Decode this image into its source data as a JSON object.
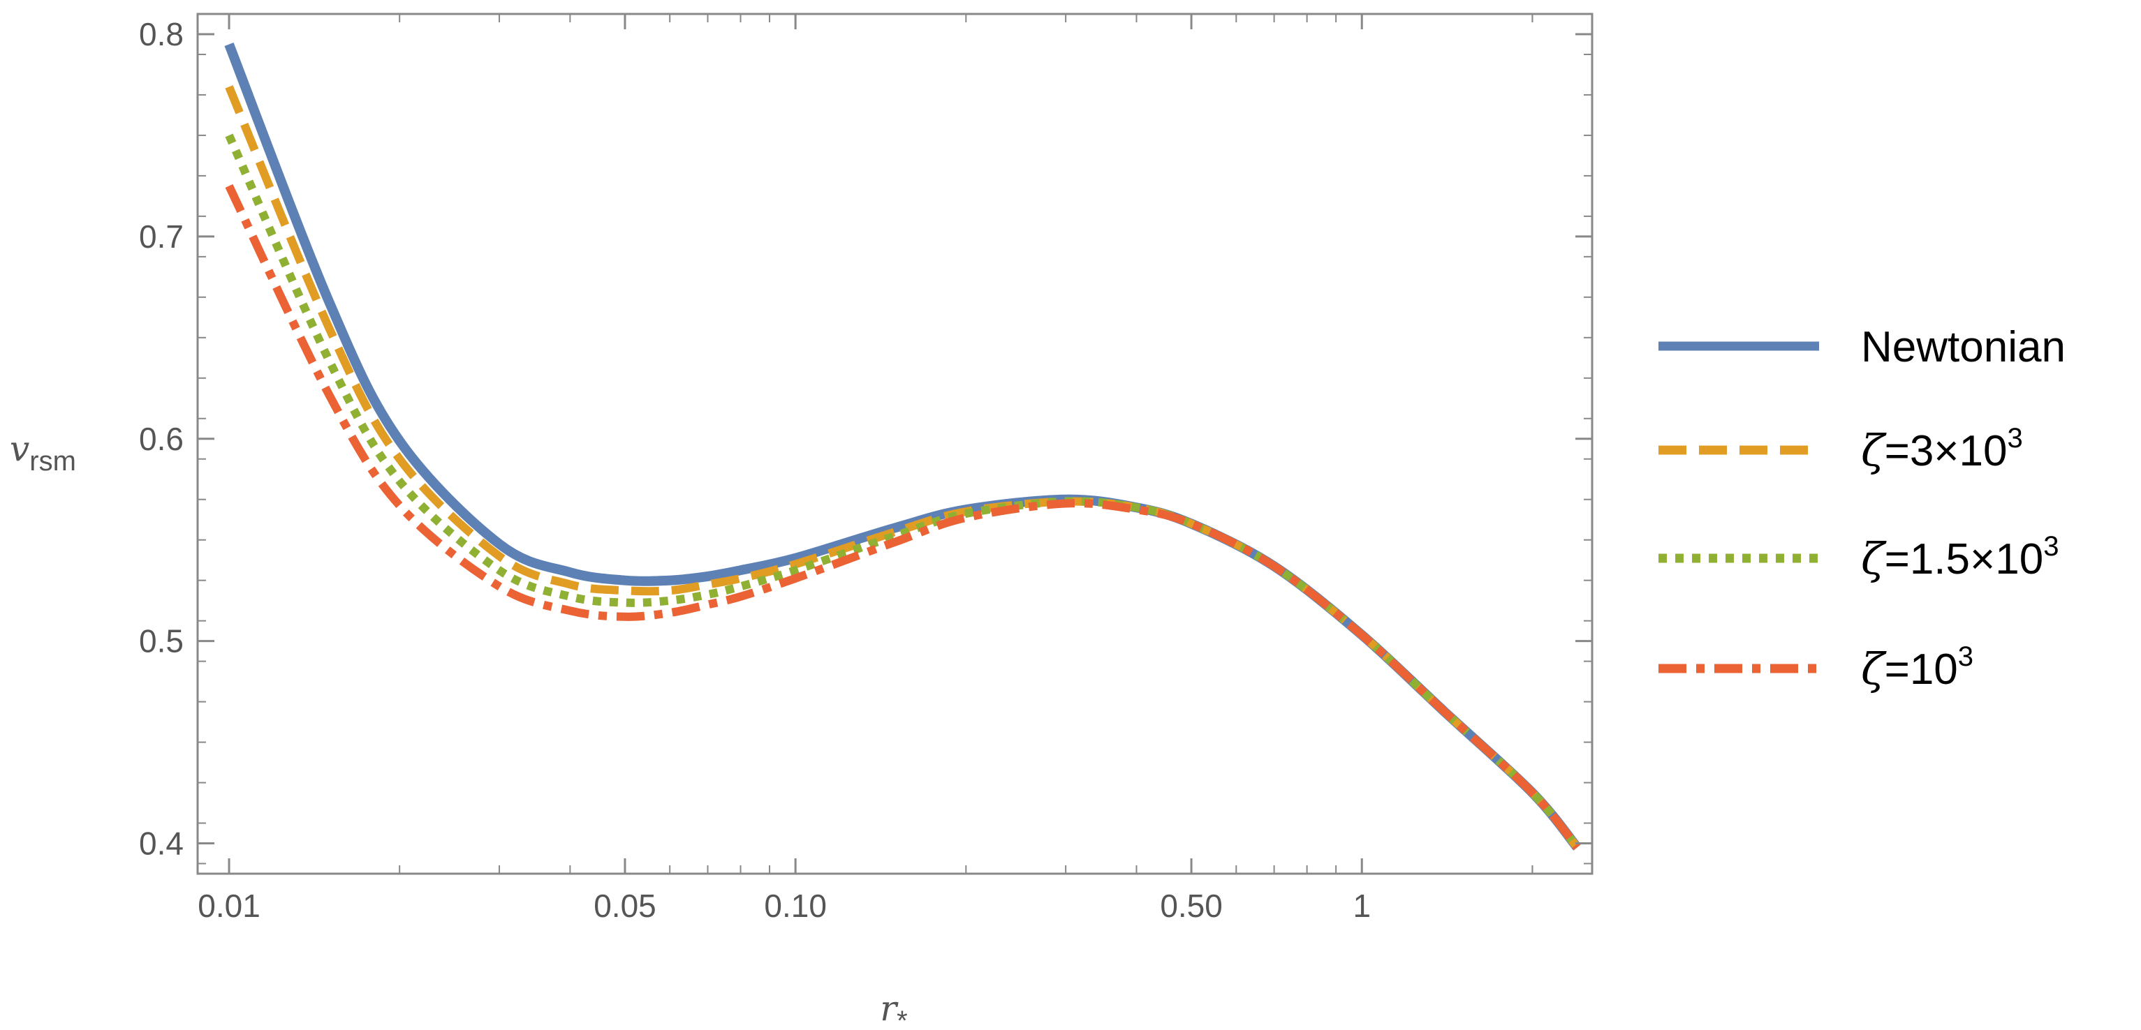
{
  "chart_data": {
    "type": "line",
    "title": "",
    "xlabel": "r",
    "xlabel_subscript": "*",
    "ylabel": "v",
    "ylabel_subscript": "rsm",
    "xscale": "log",
    "xlim": [
      0.0088,
      2.55
    ],
    "ylim": [
      0.385,
      0.81
    ],
    "x_ticks": [
      0.01,
      0.05,
      0.1,
      0.5,
      1
    ],
    "x_tick_labels": [
      "0.01",
      "0.05",
      "0.10",
      "0.50",
      "1"
    ],
    "y_ticks": [
      0.4,
      0.5,
      0.6,
      0.7,
      0.8
    ],
    "y_tick_labels": [
      "0.4",
      "0.5",
      "0.6",
      "0.7",
      "0.8"
    ],
    "grid": false,
    "legend_position": "right",
    "x": [
      0.01,
      0.015,
      0.02,
      0.03,
      0.04,
      0.05,
      0.06,
      0.07,
      0.08,
      0.1,
      0.15,
      0.2,
      0.3,
      0.4,
      0.5,
      0.7,
      1.0,
      1.4,
      2.0,
      2.4
    ],
    "series": [
      {
        "name": "Newtonian",
        "color": "#5E81B5",
        "dash": "solid",
        "values": [
          0.795,
          0.668,
          0.599,
          0.548,
          0.534,
          0.53,
          0.53,
          0.532,
          0.535,
          0.541,
          0.556,
          0.565,
          0.57,
          0.566,
          0.558,
          0.537,
          0.503,
          0.465,
          0.425,
          0.398
        ]
      },
      {
        "name": "ζ=3×10³",
        "name_base": "=3×10",
        "name_exp": "3",
        "color": "#E19C24",
        "dash": "dashed",
        "values": [
          0.774,
          0.655,
          0.59,
          0.542,
          0.528,
          0.525,
          0.525,
          0.528,
          0.531,
          0.538,
          0.554,
          0.564,
          0.569,
          0.566,
          0.558,
          0.537,
          0.503,
          0.465,
          0.425,
          0.398
        ]
      },
      {
        "name": "ζ=1.5×10³",
        "name_base": "=1.5×10",
        "name_exp": "3",
        "color": "#8FB032",
        "dash": "dotted",
        "values": [
          0.75,
          0.639,
          0.579,
          0.535,
          0.522,
          0.519,
          0.52,
          0.523,
          0.527,
          0.535,
          0.552,
          0.563,
          0.569,
          0.566,
          0.558,
          0.537,
          0.503,
          0.465,
          0.425,
          0.398
        ]
      },
      {
        "name": "ζ=10³",
        "name_base": "=10",
        "name_exp": "3",
        "color": "#EB6235",
        "dash": "dashdot",
        "values": [
          0.725,
          0.622,
          0.567,
          0.527,
          0.515,
          0.512,
          0.514,
          0.518,
          0.522,
          0.531,
          0.549,
          0.561,
          0.568,
          0.565,
          0.558,
          0.537,
          0.503,
          0.465,
          0.425,
          0.398
        ]
      }
    ]
  }
}
